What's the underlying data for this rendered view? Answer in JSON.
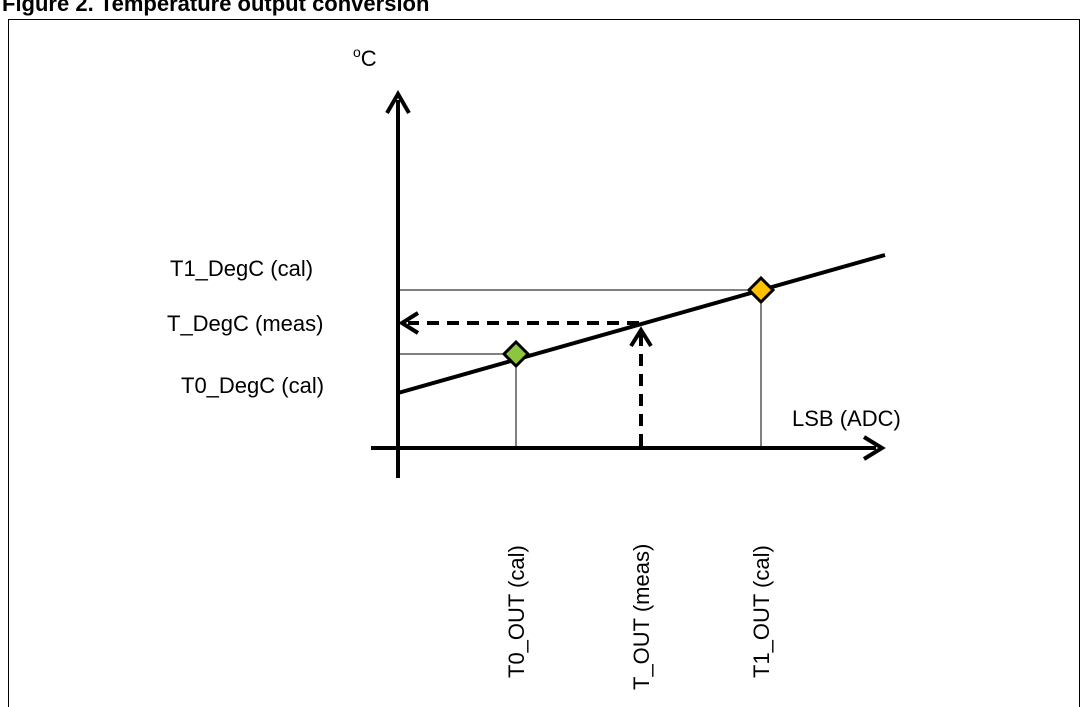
{
  "heading": "Figure 2. Temperature output conversion",
  "axes": {
    "y_unit_superscript": "o",
    "y_unit": "C",
    "x_label": "LSB (ADC)"
  },
  "y_labels": {
    "t1": "T1_DegC (cal)",
    "meas": "T_DegC (meas)",
    "t0": "T0_DegC (cal)"
  },
  "x_labels": {
    "t0": "T0_OUT (cal)",
    "meas": "T_OUT (meas)",
    "t1": "T1_OUT (cal)"
  },
  "colors": {
    "t0_marker": "#8cc63f",
    "t1_marker": "#ffc000",
    "line": "#000000"
  }
}
